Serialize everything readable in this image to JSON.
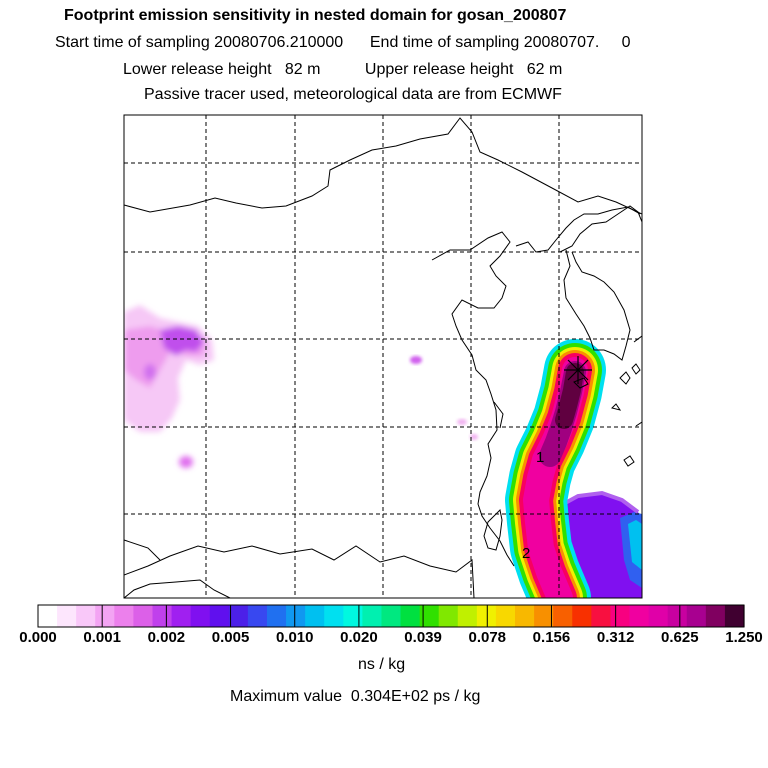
{
  "header": {
    "title": "Footprint emission sensitivity in nested domain for gosan_200807",
    "line2": "Start time of sampling 20080706.210000      End time of sampling 20080707.     0",
    "line3": "Lower release height   82 m          Upper release height   62 m",
    "line4": "Passive tracer used, meteorological data are from ECMWF"
  },
  "map": {
    "markers": [
      "1",
      "2"
    ],
    "site_marker": "star-icon"
  },
  "colorbar": {
    "tick_labels": [
      "0.000",
      "0.001",
      "0.002",
      "0.005",
      "0.010",
      "0.020",
      "0.039",
      "0.078",
      "0.156",
      "0.312",
      "0.625",
      "1.250"
    ],
    "colors": [
      "#ffffff",
      "#fde6fd",
      "#f9c8f9",
      "#f3a4f3",
      "#ec80ec",
      "#dc60e8",
      "#c040ec",
      "#a020f0",
      "#8010f0",
      "#6010ee",
      "#4c20e8",
      "#3848f0",
      "#2070f0",
      "#1098f0",
      "#00c0f0",
      "#00e0f0",
      "#00f8e0",
      "#00f0b0",
      "#00e880",
      "#00e040",
      "#30e000",
      "#80e800",
      "#c0f000",
      "#f0f000",
      "#f8d800",
      "#f8b800",
      "#f89000",
      "#f86000",
      "#f83000",
      "#f81040",
      "#f80080",
      "#f000a0",
      "#e000a8",
      "#c800a0",
      "#a80090",
      "#800060",
      "#400030"
    ],
    "unit": "ns / kg"
  },
  "footer": {
    "max_value": "Maximum value  0.304E+02 ps / kg"
  }
}
